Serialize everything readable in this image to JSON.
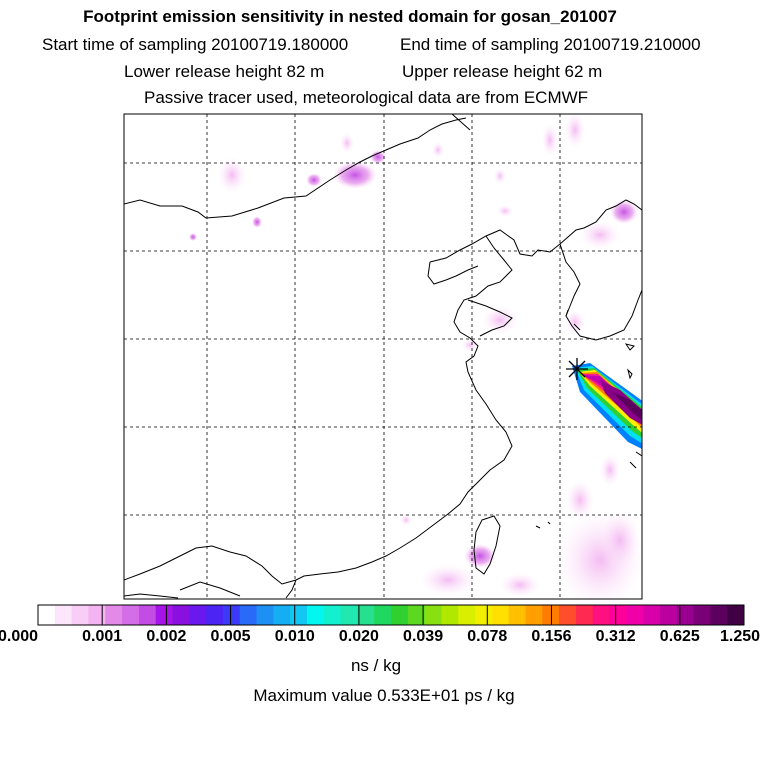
{
  "header": {
    "title": "Footprint emission sensitivity in nested domain for gosan_201007",
    "start_label": "Start time of sampling 20100719.180000",
    "end_label": "End time of sampling 20100719.210000",
    "lower_label": "Lower release height   82 m",
    "upper_label": "Upper release height   62 m",
    "note": "Passive tracer used, meteorological data are from ECMWF"
  },
  "colorbar": {
    "tick_labels": [
      "0.000",
      "0.001",
      "0.002",
      "0.005",
      "0.010",
      "0.020",
      "0.039",
      "0.078",
      "0.156",
      "0.312",
      "0.625",
      "1.250"
    ],
    "units": "ns / kg",
    "colors": [
      "#ffffff",
      "#fde6fb",
      "#f8cdf6",
      "#f3b4f1",
      "#e38ae9",
      "#d46ee6",
      "#c24ce4",
      "#a614e8",
      "#8a10e0",
      "#6a18ee",
      "#4c24f4",
      "#3a3af8",
      "#2a6af8",
      "#1e90f4",
      "#16aef2",
      "#12c8f2",
      "#00f8f0",
      "#12f0d0",
      "#20e8b0",
      "#26e090",
      "#20d860",
      "#30d030",
      "#5cd820",
      "#88e010",
      "#b0e800",
      "#d8f000",
      "#f0f000",
      "#ffe000",
      "#ffc000",
      "#ffa000",
      "#ff7c00",
      "#ff4e2c",
      "#ff2a50",
      "#ff1080",
      "#ff0098",
      "#f000a8",
      "#d800a8",
      "#bc00a0",
      "#9a0090",
      "#7a0078",
      "#5c0060",
      "#400044"
    ]
  },
  "footer": {
    "max_label": "Maximum value  0.533E+01 ps / kg"
  },
  "map": {
    "receptor_marker": "asterisk-star-icon",
    "plume_colors": [
      "#0080ff",
      "#00e0f0",
      "#ffee00",
      "#ff8000",
      "#ff2090",
      "#e000c0",
      "#a000a0",
      "#600060"
    ]
  }
}
